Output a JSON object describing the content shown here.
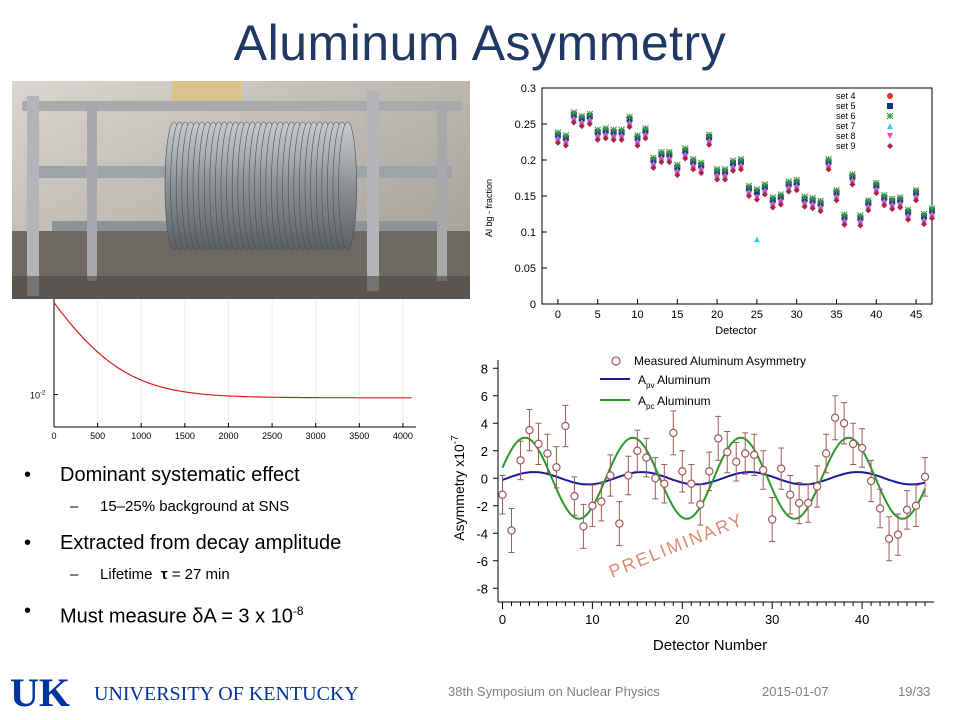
{
  "slide": {
    "title": "Aluminum Asymmetry",
    "bullets": [
      {
        "text": "Dominant systematic effect",
        "sub": "15–25% background at SNS"
      },
      {
        "text": "Extracted from decay amplitude",
        "sub_prefix": "Lifetime  ",
        "sub_tau": "τ",
        "sub_rest": " = 27 min"
      },
      {
        "text_prefix": "Must measure δA = 3 x 10",
        "text_sup": "-8"
      }
    ],
    "footer": {
      "conference": "38th Symposium on Nuclear Physics",
      "date": "2015-01-07",
      "page": "19/33"
    },
    "logo": {
      "mark": "UK",
      "name": "UNIVERSITY OF KENTUCKY"
    },
    "colors": {
      "title": "#1f3864",
      "uk_blue": "#0033a0"
    }
  },
  "chart_data": [
    {
      "type": "scatter",
      "xlabel": "Detector",
      "ylabel": "Al bg - fraction",
      "xlim": [
        -2,
        47
      ],
      "ylim": [
        0,
        0.3
      ],
      "xticks": [
        0,
        5,
        10,
        15,
        20,
        25,
        30,
        35,
        40,
        45
      ],
      "yticks": [
        0,
        0.05,
        0.1,
        0.15,
        0.2,
        0.25,
        0.3
      ],
      "legend_position": "top-right",
      "series": [
        {
          "name": "set 4",
          "color": "#e03030",
          "marker": "circle"
        },
        {
          "name": "set 5",
          "color": "#1c2f8c",
          "marker": "square"
        },
        {
          "name": "set 6",
          "color": "#3a9a3a",
          "marker": "star"
        },
        {
          "name": "set 7",
          "color": "#40c8e0",
          "marker": "triangle"
        },
        {
          "name": "set 8",
          "color": "#e050c0",
          "marker": "triangle-down"
        },
        {
          "name": "set 9",
          "color": "#b02040",
          "marker": "diamond"
        }
      ],
      "detector_values": [
        0.232,
        0.228,
        0.26,
        0.255,
        0.258,
        0.236,
        0.238,
        0.236,
        0.236,
        0.254,
        0.228,
        0.238,
        0.197,
        0.205,
        0.205,
        0.187,
        0.21,
        0.195,
        0.19,
        0.229,
        0.181,
        0.181,
        0.193,
        0.195,
        0.158,
        0.153,
        0.16,
        0.142,
        0.146,
        0.164,
        0.166,
        0.143,
        0.141,
        0.137,
        0.195,
        0.152,
        0.118,
        0.174,
        0.117,
        0.138,
        0.162,
        0.145,
        0.14,
        0.142,
        0.125,
        0.152,
        0.119,
        0.127
      ],
      "outliers": [
        {
          "x": 25,
          "y": 0.09,
          "series": "set 7"
        }
      ]
    },
    {
      "type": "line",
      "xlim": [
        0,
        4150
      ],
      "xticks": [
        0,
        500,
        1000,
        1500,
        2000,
        2500,
        3000,
        3500,
        4000
      ],
      "y_scale": "log",
      "ytick_label_base": "10",
      "ytick_label_exp": "-2",
      "series": [
        {
          "color": "#d62020",
          "amplitude": 0.033,
          "tau": 420,
          "offset": 0.0095
        }
      ]
    },
    {
      "type": "scatter",
      "xlabel": "Detector Number",
      "ylabel": "Asymmetry x10",
      "ylabel_exp": "-7",
      "xlim": [
        -0.5,
        48
      ],
      "ylim": [
        -9,
        8.6
      ],
      "xticks": [
        0,
        10,
        20,
        30,
        40
      ],
      "yticks": [
        -8,
        -6,
        -4,
        -2,
        0,
        2,
        4,
        6,
        8
      ],
      "legend_position": "top-left",
      "annotation": "PRELIMINARY",
      "series": [
        {
          "name": "Measured Aluminum Asymmetry",
          "color": "#a05a5a",
          "kind": "points"
        },
        {
          "name_main": "A",
          "name_sub": "pv",
          "name_tail": " Aluminum",
          "color": "#1a1a9a",
          "kind": "curve",
          "amplitude": 0.45,
          "period": 12,
          "phase": 0.5
        },
        {
          "name_main": "A",
          "name_sub": "pc",
          "name_tail": " Aluminum",
          "color": "#2a9a2a",
          "kind": "curve",
          "amplitude": 2.95,
          "period": 12,
          "phase": -0.5
        }
      ],
      "points": [
        [
          0,
          -1.2
        ],
        [
          1,
          -3.8
        ],
        [
          2,
          1.3
        ],
        [
          3,
          3.5
        ],
        [
          4,
          2.5
        ],
        [
          5,
          1.8
        ],
        [
          6,
          0.8
        ],
        [
          7,
          3.8
        ],
        [
          8,
          -1.3
        ],
        [
          9,
          -3.5
        ],
        [
          10,
          -2
        ],
        [
          11,
          -1.7
        ],
        [
          12,
          0.2
        ],
        [
          13,
          -3.3
        ],
        [
          14,
          0.2
        ],
        [
          15,
          2
        ],
        [
          16,
          1.5
        ],
        [
          17,
          0
        ],
        [
          18,
          -0.4
        ],
        [
          19,
          3.3
        ],
        [
          20,
          0.5
        ],
        [
          21,
          -0.4
        ],
        [
          22,
          -1.9
        ],
        [
          23,
          0.5
        ],
        [
          24,
          2.9
        ],
        [
          25,
          1.9
        ],
        [
          26,
          1.2
        ],
        [
          27,
          1.8
        ],
        [
          28,
          1.7
        ],
        [
          29,
          0.6
        ],
        [
          30,
          -3
        ],
        [
          31,
          0.7
        ],
        [
          32,
          -1.2
        ],
        [
          33,
          -1.8
        ],
        [
          34,
          -1.8
        ],
        [
          35,
          -0.6
        ],
        [
          36,
          1.8
        ],
        [
          37,
          4.4
        ],
        [
          38,
          4
        ],
        [
          39,
          2.5
        ],
        [
          40,
          2.2
        ],
        [
          41,
          -0.2
        ],
        [
          42,
          -2.2
        ],
        [
          43,
          -4.4
        ],
        [
          44,
          -4.1
        ],
        [
          45,
          -2.3
        ],
        [
          46,
          -2
        ],
        [
          47,
          0.1
        ]
      ],
      "errors": [
        1.4,
        1.6,
        1.4,
        1.5,
        1.5,
        1.4,
        1.5,
        1.5,
        1.4,
        1.6,
        1.5,
        1.4,
        1.5,
        1.6,
        1.4,
        1.5,
        1.4,
        1.5,
        1.4,
        1.6,
        1.5,
        1.4,
        1.5,
        1.4,
        1.6,
        1.5,
        1.4,
        1.5,
        1.5,
        1.4,
        1.6,
        1.5,
        1.4,
        1.5,
        1.4,
        1.5,
        1.4,
        1.6,
        1.5,
        1.5,
        1.4,
        1.5,
        1.4,
        1.6,
        1.5,
        1.4,
        1.5,
        1.4
      ]
    }
  ]
}
